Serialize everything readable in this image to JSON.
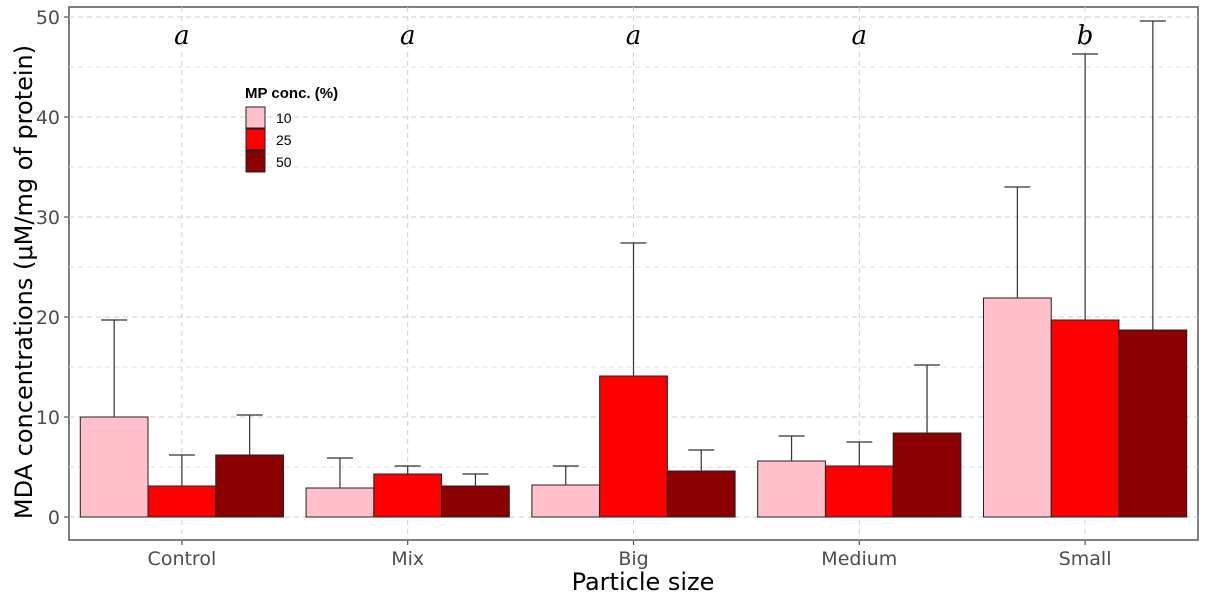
{
  "chart_data": {
    "type": "bar",
    "title": "",
    "xlabel": "Particle size",
    "ylabel": "MDA concentrations (μM/mg of protein)",
    "ylim": [
      -2.3,
      51
    ],
    "yticks": [
      0,
      10,
      20,
      30,
      40,
      50
    ],
    "grid": true,
    "categories": [
      "Control",
      "Mix",
      "Big",
      "Medium",
      "Small"
    ],
    "significance_letters": [
      "a",
      "a",
      "a",
      "a",
      "b"
    ],
    "legend": {
      "title": "MP conc. (%)",
      "position": "top-left inside"
    },
    "series": [
      {
        "name": "10",
        "color": "#FFC0CB",
        "values": [
          10.0,
          2.9,
          3.2,
          5.6,
          21.9
        ],
        "error_upper": [
          19.7,
          5.9,
          5.1,
          8.1,
          33.0
        ]
      },
      {
        "name": "25",
        "color": "#FF0000",
        "values": [
          3.1,
          4.3,
          14.1,
          5.1,
          19.7
        ],
        "error_upper": [
          6.2,
          5.1,
          27.4,
          7.5,
          46.3
        ]
      },
      {
        "name": "50",
        "color": "#8B0000",
        "values": [
          6.2,
          3.1,
          4.6,
          8.4,
          18.7
        ],
        "error_upper": [
          10.2,
          4.3,
          6.7,
          15.2,
          49.6
        ]
      }
    ]
  }
}
